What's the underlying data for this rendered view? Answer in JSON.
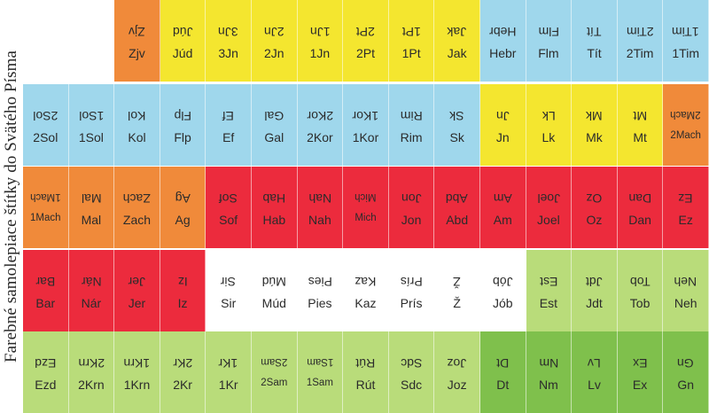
{
  "side_title": "Farebné samolepiace štítky do Svätého Písma",
  "colors": {
    "white": "#ffffff",
    "orange": "#f08a3a",
    "yellow": "#f4e62f",
    "blue": "#9fd7ec",
    "red": "#ec2b3d",
    "lightgreen": "#b9dc7a",
    "green": "#7fc04c"
  },
  "rows": [
    {
      "cells": [
        {
          "label": "",
          "color": "white"
        },
        {
          "label": "Zjv",
          "color": "orange"
        },
        {
          "label": "Júd",
          "color": "yellow"
        },
        {
          "label": "3Jn",
          "color": "yellow"
        },
        {
          "label": "2Jn",
          "color": "yellow"
        },
        {
          "label": "1Jn",
          "color": "yellow"
        },
        {
          "label": "2Pt",
          "color": "yellow"
        },
        {
          "label": "1Pt",
          "color": "yellow"
        },
        {
          "label": "Jak",
          "color": "yellow"
        },
        {
          "label": "Hebr",
          "color": "blue"
        },
        {
          "label": "Flm",
          "color": "blue"
        },
        {
          "label": "Tít",
          "color": "blue"
        },
        {
          "label": "2Tim",
          "color": "blue"
        },
        {
          "label": "1Tim",
          "color": "blue"
        }
      ]
    },
    {
      "cells": [
        {
          "label": "2Sol",
          "color": "blue"
        },
        {
          "label": "1Sol",
          "color": "blue"
        },
        {
          "label": "Kol",
          "color": "blue"
        },
        {
          "label": "Flp",
          "color": "blue"
        },
        {
          "label": "Ef",
          "color": "blue"
        },
        {
          "label": "Gal",
          "color": "blue"
        },
        {
          "label": "2Kor",
          "color": "blue"
        },
        {
          "label": "1Kor",
          "color": "blue"
        },
        {
          "label": "Rim",
          "color": "blue"
        },
        {
          "label": "Sk",
          "color": "blue"
        },
        {
          "label": "Jn",
          "color": "yellow"
        },
        {
          "label": "Lk",
          "color": "yellow"
        },
        {
          "label": "Mk",
          "color": "yellow"
        },
        {
          "label": "Mt",
          "color": "yellow"
        },
        {
          "label": "2Mach",
          "color": "orange",
          "size": "small"
        }
      ]
    },
    {
      "cells": [
        {
          "label": "1Mach",
          "color": "orange",
          "size": "small"
        },
        {
          "label": "Mal",
          "color": "orange"
        },
        {
          "label": "Zach",
          "color": "orange"
        },
        {
          "label": "Ag",
          "color": "orange"
        },
        {
          "label": "Sof",
          "color": "red"
        },
        {
          "label": "Hab",
          "color": "red"
        },
        {
          "label": "Nah",
          "color": "red"
        },
        {
          "label": "Mich",
          "color": "red",
          "size": "small"
        },
        {
          "label": "Jon",
          "color": "red"
        },
        {
          "label": "Abd",
          "color": "red"
        },
        {
          "label": "Am",
          "color": "red"
        },
        {
          "label": "Joel",
          "color": "red"
        },
        {
          "label": "Oz",
          "color": "red"
        },
        {
          "label": "Dan",
          "color": "red"
        },
        {
          "label": "Ez",
          "color": "red"
        }
      ]
    },
    {
      "cells": [
        {
          "label": "Bar",
          "color": "red"
        },
        {
          "label": "Nár",
          "color": "red"
        },
        {
          "label": "Jer",
          "color": "red"
        },
        {
          "label": "Iz",
          "color": "red"
        },
        {
          "label": "Sir",
          "color": "white"
        },
        {
          "label": "Múd",
          "color": "white"
        },
        {
          "label": "Pies",
          "color": "white"
        },
        {
          "label": "Kaz",
          "color": "white"
        },
        {
          "label": "Prís",
          "color": "white"
        },
        {
          "label": "Ž",
          "color": "white"
        },
        {
          "label": "Jób",
          "color": "white"
        },
        {
          "label": "Est",
          "color": "lightgreen"
        },
        {
          "label": "Jdt",
          "color": "lightgreen"
        },
        {
          "label": "Tob",
          "color": "lightgreen"
        },
        {
          "label": "Neh",
          "color": "lightgreen"
        }
      ]
    },
    {
      "cells": [
        {
          "label": "Ezd",
          "color": "lightgreen"
        },
        {
          "label": "2Krn",
          "color": "lightgreen"
        },
        {
          "label": "1Krn",
          "color": "lightgreen"
        },
        {
          "label": "2Kr",
          "color": "lightgreen"
        },
        {
          "label": "1Kr",
          "color": "lightgreen"
        },
        {
          "label": "2Sam",
          "color": "lightgreen",
          "size": "small"
        },
        {
          "label": "1Sam",
          "color": "lightgreen",
          "size": "small"
        },
        {
          "label": "Rút",
          "color": "lightgreen"
        },
        {
          "label": "Sdc",
          "color": "lightgreen"
        },
        {
          "label": "Joz",
          "color": "lightgreen"
        },
        {
          "label": "Dt",
          "color": "green"
        },
        {
          "label": "Nm",
          "color": "green"
        },
        {
          "label": "Lv",
          "color": "green"
        },
        {
          "label": "Ex",
          "color": "green"
        },
        {
          "label": "Gn",
          "color": "green"
        }
      ]
    }
  ]
}
